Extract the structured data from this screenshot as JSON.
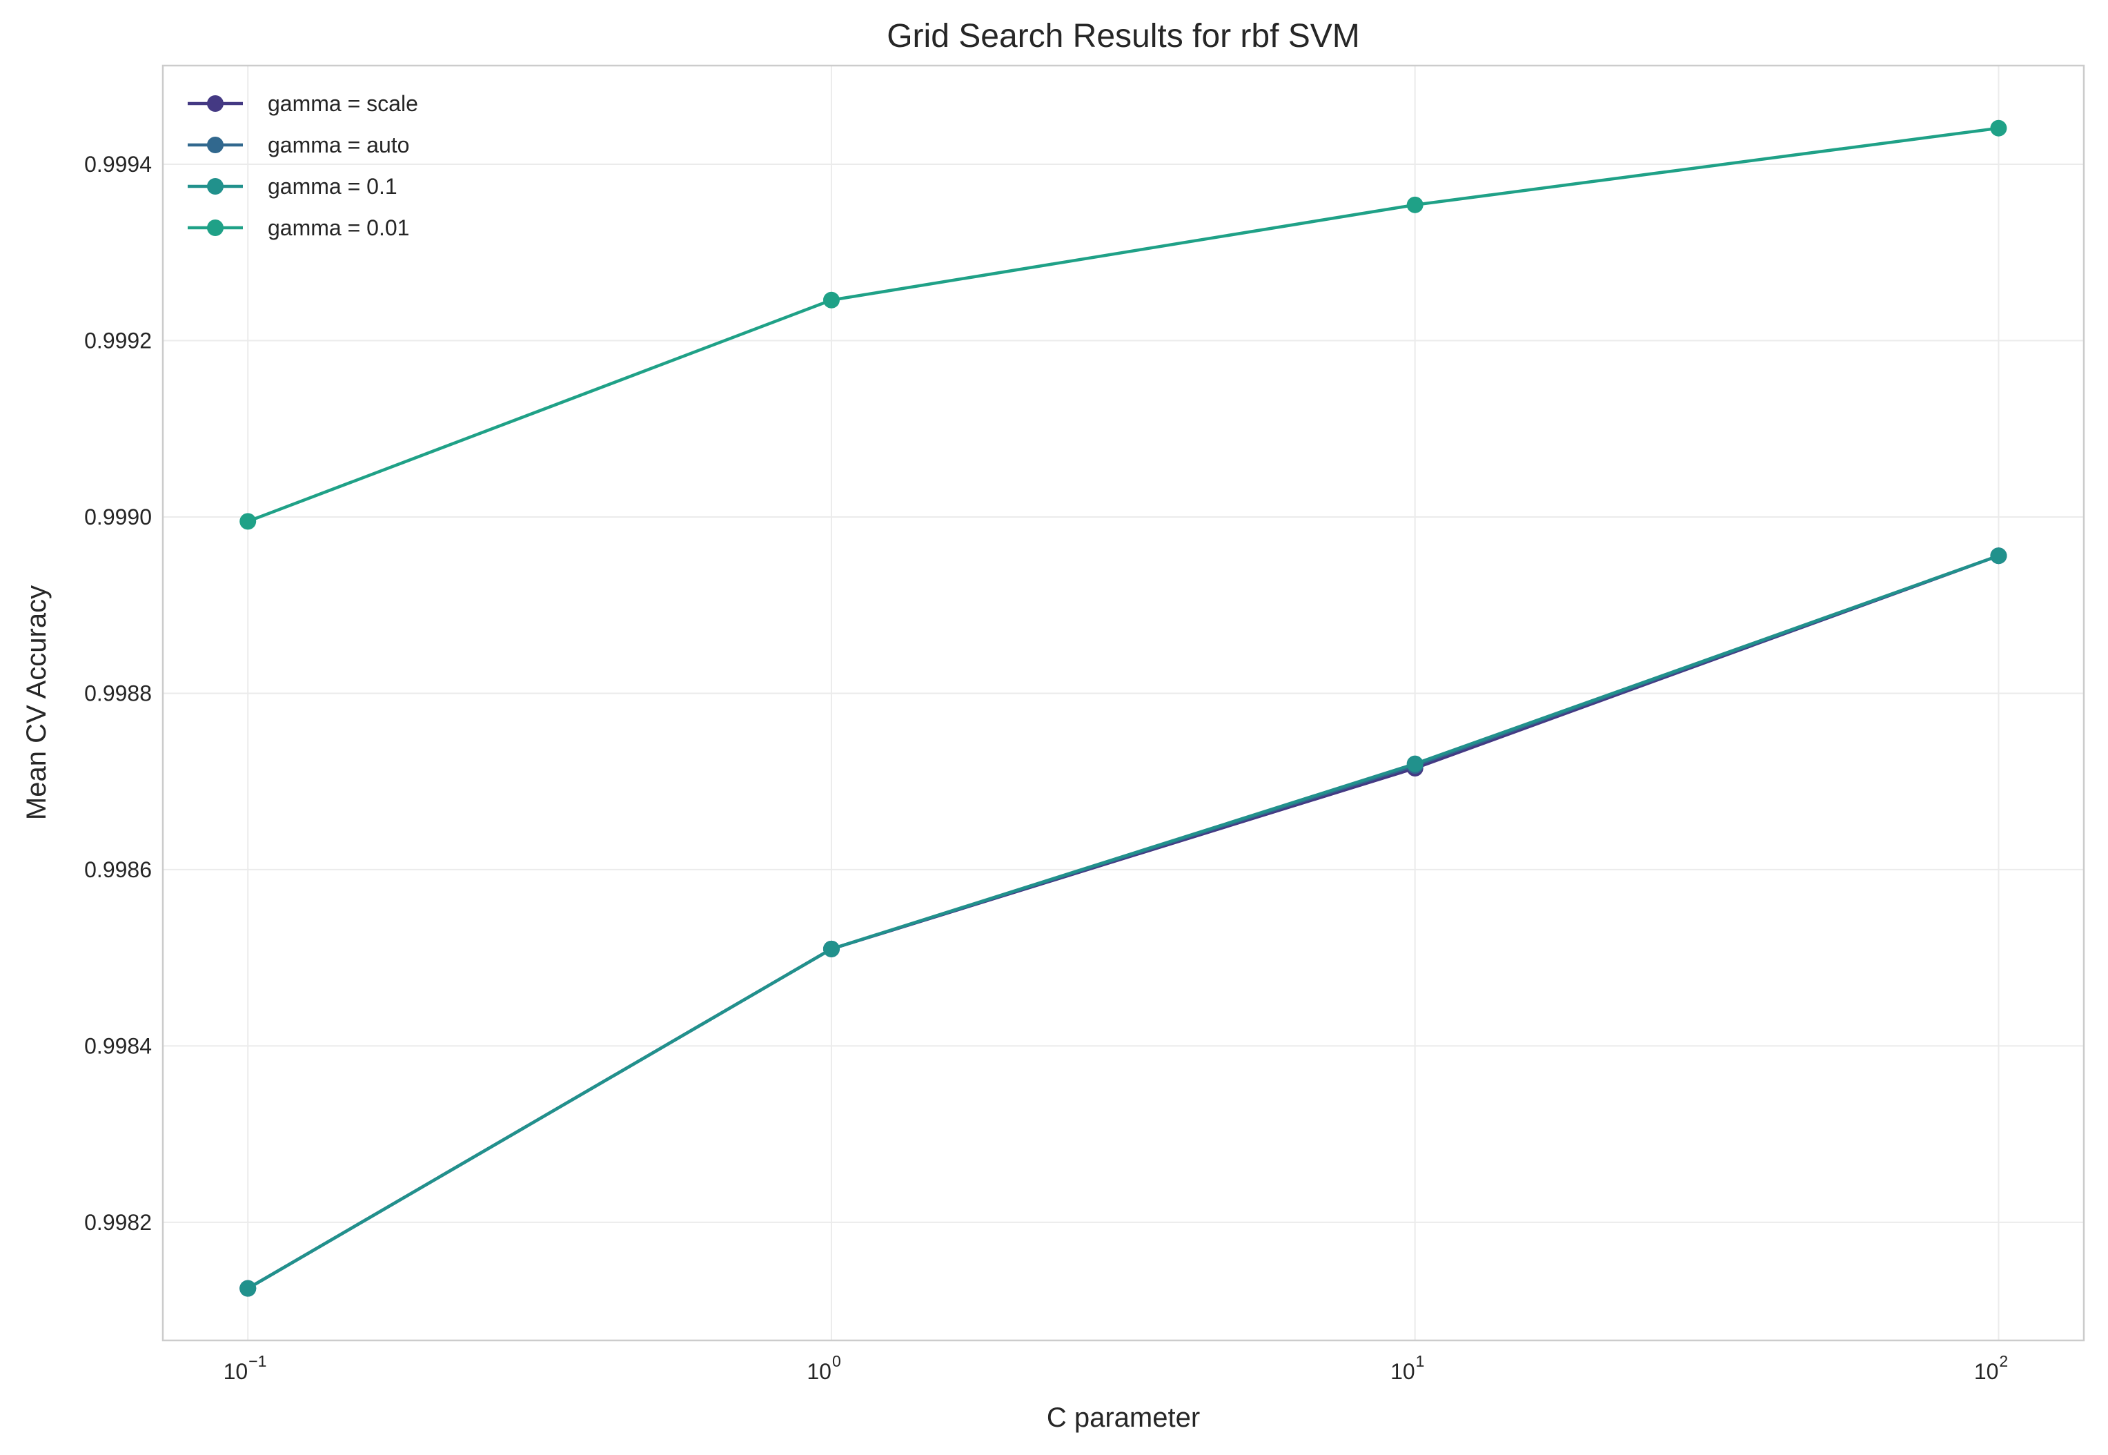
{
  "chart_data": {
    "type": "line",
    "title": "Grid Search Results for rbf SVM",
    "xlabel": "C parameter",
    "ylabel": "Mean CV Accuracy",
    "x_scale": "log",
    "x": [
      0.1,
      1,
      10,
      100
    ],
    "x_tick_labels": [
      {
        "base": "10",
        "exp": "−1"
      },
      {
        "base": "10",
        "exp": "0"
      },
      {
        "base": "10",
        "exp": "1"
      },
      {
        "base": "10",
        "exp": "2"
      }
    ],
    "xlim": [
      0.0715,
      140
    ],
    "ylim": [
      0.998066,
      0.999512
    ],
    "y_ticks": [
      0.9982,
      0.9984,
      0.9986,
      0.9988,
      0.999,
      0.9992,
      0.9994
    ],
    "y_tick_labels": [
      "0.9982",
      "0.9984",
      "0.9986",
      "0.9988",
      "0.9990",
      "0.9992",
      "0.9994"
    ],
    "grid": true,
    "legend_position": "top-left",
    "series": [
      {
        "name": "gamma = scale",
        "color": "#443983",
        "values": [
          0.998125,
          0.99851,
          0.998715,
          0.998956
        ]
      },
      {
        "name": "gamma = auto",
        "color": "#31688e",
        "values": [
          0.998125,
          0.99851,
          0.998718,
          0.998956
        ]
      },
      {
        "name": "gamma = 0.1",
        "color": "#21918c",
        "values": [
          0.998125,
          0.99851,
          0.99872,
          0.998956
        ]
      },
      {
        "name": "gamma = 0.01",
        "color": "#1fa187",
        "values": [
          0.998995,
          0.999246,
          0.999354,
          0.999441
        ]
      }
    ]
  }
}
